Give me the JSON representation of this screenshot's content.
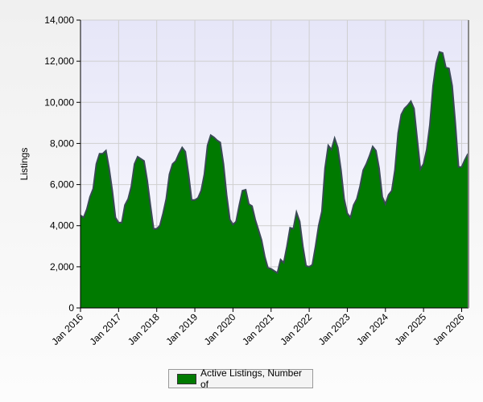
{
  "chart_data": {
    "type": "area",
    "title": "",
    "xlabel": "",
    "ylabel": "Listings",
    "ylim": [
      0,
      14000
    ],
    "yticks": [
      "0",
      "2,000",
      "4,000",
      "6,000",
      "8,000",
      "10,000",
      "12,000",
      "14,000"
    ],
    "xtick_labels": [
      "Jan 2016",
      "Jan 2017",
      "Jan 2018",
      "Jan 2019",
      "Jan 2020",
      "Jan 2021",
      "Jan 2022",
      "Jan 2023",
      "Jan 2024",
      "Jan 2025",
      "Jan 2026"
    ],
    "x_start": "Jan 2016",
    "x_interval": "monthly",
    "grid": true,
    "legend_position": "bottom",
    "colors": {
      "fill": "#007a00",
      "line": "#3a4a55"
    },
    "series": [
      {
        "name": "Active Listings, Number of",
        "values": [
          4500,
          4400,
          4800,
          5400,
          5800,
          7000,
          7500,
          7500,
          7650,
          6800,
          5700,
          4400,
          4150,
          4150,
          5000,
          5300,
          5900,
          7000,
          7350,
          7250,
          7150,
          6200,
          5000,
          3850,
          3850,
          4000,
          4600,
          5300,
          6500,
          7000,
          7150,
          7500,
          7800,
          7600,
          6500,
          5250,
          5250,
          5350,
          5700,
          6500,
          7900,
          8400,
          8300,
          8150,
          8050,
          7000,
          5500,
          4300,
          4050,
          4200,
          5000,
          5700,
          5750,
          5050,
          4950,
          4300,
          3800,
          3300,
          2500,
          1950,
          1900,
          1800,
          1700,
          2350,
          2200,
          3000,
          3900,
          3850,
          4650,
          4200,
          3000,
          2050,
          2000,
          2100,
          3000,
          4000,
          4700,
          6800,
          7900,
          7700,
          8250,
          7800,
          6700,
          5300,
          4600,
          4400,
          5000,
          5300,
          5900,
          6700,
          7000,
          7400,
          7850,
          7650,
          6800,
          5400,
          5050,
          5500,
          5700,
          6700,
          8500,
          9400,
          9700,
          9850,
          10050,
          9700,
          8200,
          6750,
          7000,
          7700,
          8900,
          10800,
          11900,
          12450,
          12400,
          11700,
          11650,
          10800,
          9000,
          6850,
          6850,
          7200,
          7500
        ]
      }
    ]
  }
}
